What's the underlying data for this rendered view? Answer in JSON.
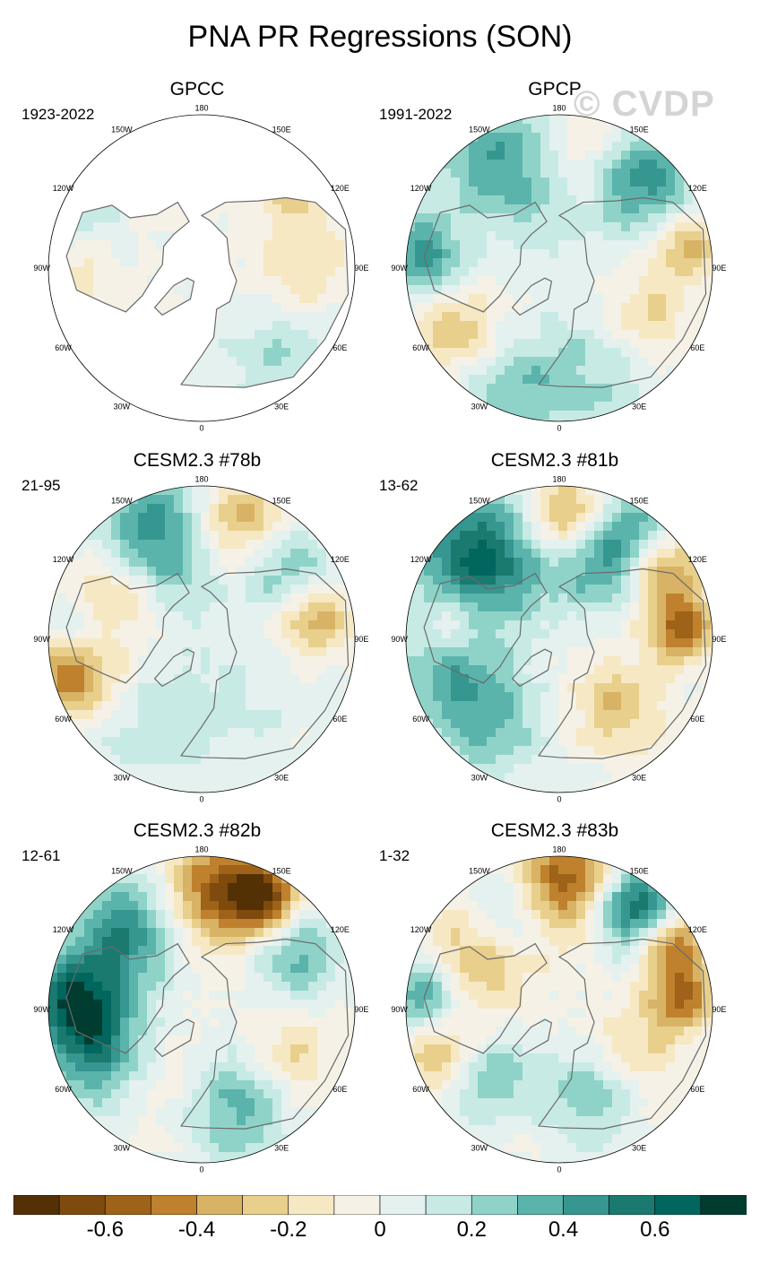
{
  "title": "PNA PR Regressions (SON)",
  "watermark": "© CVDP",
  "colors": {
    "levels": [
      "#543005",
      "#7f4a0e",
      "#9e6218",
      "#bf812d",
      "#d8b365",
      "#e8cf8c",
      "#f6e8c3",
      "#f5f1e6",
      "#e4f1ef",
      "#c7eae5",
      "#8fd3c8",
      "#5ab4ac",
      "#35978f",
      "#1a7a70",
      "#01665e",
      "#003c30"
    ],
    "land_outline": "#6a6a6a"
  },
  "lon_labels": [
    "180",
    "150E",
    "120E",
    "90E",
    "60E",
    "30E",
    "0",
    "30W",
    "60W",
    "90W",
    "120W",
    "150W"
  ],
  "panels": [
    {
      "name": "GPCC",
      "period": "1923-2022"
    },
    {
      "name": "GPCP",
      "period": "1991-2022"
    },
    {
      "name": "CESM2.3 #78b",
      "period": "21-95"
    },
    {
      "name": "CESM2.3 #81b",
      "period": "13-62"
    },
    {
      "name": "CESM2.3 #82b",
      "period": "12-61"
    },
    {
      "name": "CESM2.3 #83b",
      "period": "1-32"
    }
  ],
  "chart_data": {
    "type": "heatmap",
    "title": "PNA PR Regressions (SON)",
    "projection": "north polar stereographic",
    "colorbar": {
      "levels": [
        -0.7,
        -0.6,
        -0.5,
        -0.4,
        -0.3,
        -0.2,
        -0.1,
        0,
        0.1,
        0.2,
        0.3,
        0.4,
        0.5,
        0.6,
        0.7
      ],
      "tick_labels": [
        "-0.6",
        "-0.4",
        "-0.2",
        "0",
        "0.2",
        "0.4",
        "0.6"
      ],
      "tick_values": [
        -0.6,
        -0.4,
        -0.2,
        0,
        0.2,
        0.4,
        0.6
      ]
    },
    "panels": [
      {
        "title": "GPCC",
        "period": "1923-2022",
        "land_only": true,
        "features": [
          [
            -170,
            42,
            0.2,
            -0.25
          ],
          [
            -120,
            32,
            0.15,
            0.2
          ],
          [
            -80,
            30,
            0.2,
            -0.15
          ],
          [
            40,
            35,
            0.25,
            0.2
          ],
          [
            90,
            45,
            0.2,
            -0.2
          ],
          [
            130,
            35,
            0.15,
            -0.25
          ]
        ]
      },
      {
        "title": "GPCP",
        "period": "1991-2022",
        "land_only": false,
        "features": [
          [
            -150,
            40,
            0.35,
            0.45
          ],
          [
            165,
            38,
            0.25,
            -0.35
          ],
          [
            140,
            35,
            0.25,
            0.55
          ],
          [
            -95,
            30,
            0.2,
            0.5
          ],
          [
            -60,
            35,
            0.2,
            -0.3
          ],
          [
            100,
            32,
            0.15,
            -0.35
          ],
          [
            60,
            45,
            0.2,
            -0.25
          ],
          [
            -20,
            30,
            0.25,
            0.25
          ],
          [
            -110,
            45,
            0.25,
            -0.2
          ],
          [
            20,
            40,
            0.3,
            0.2
          ]
        ]
      },
      {
        "title": "CESM2.3 #78b",
        "period": "21-95",
        "land_only": false,
        "features": [
          [
            -160,
            40,
            0.3,
            0.5
          ],
          [
            165,
            35,
            0.22,
            -0.45
          ],
          [
            -115,
            45,
            0.2,
            -0.35
          ],
          [
            130,
            40,
            0.2,
            0.3
          ],
          [
            -75,
            30,
            0.2,
            -0.5
          ],
          [
            -95,
            35,
            0.15,
            0.3
          ],
          [
            100,
            38,
            0.15,
            -0.4
          ],
          [
            -30,
            45,
            0.3,
            0.15
          ],
          [
            30,
            55,
            0.3,
            0.1
          ]
        ]
      },
      {
        "title": "CESM2.3 #81b",
        "period": "13-62",
        "land_only": false,
        "features": [
          [
            -135,
            38,
            0.3,
            0.65
          ],
          [
            175,
            35,
            0.2,
            -0.5
          ],
          [
            145,
            35,
            0.25,
            0.55
          ],
          [
            125,
            32,
            0.18,
            -0.6
          ],
          [
            95,
            35,
            0.15,
            -0.55
          ],
          [
            -80,
            38,
            0.25,
            0.45
          ],
          [
            -95,
            40,
            0.2,
            -0.4
          ],
          [
            40,
            50,
            0.2,
            -0.3
          ],
          [
            -40,
            40,
            0.25,
            0.3
          ],
          [
            160,
            55,
            0.2,
            0.2
          ]
        ]
      },
      {
        "title": "CESM2.3 #82b",
        "period": "12-61",
        "land_only": false,
        "features": [
          [
            170,
            35,
            0.25,
            -0.6
          ],
          [
            150,
            32,
            0.15,
            -0.5
          ],
          [
            -135,
            40,
            0.25,
            0.5
          ],
          [
            -95,
            32,
            0.2,
            0.55
          ],
          [
            -70,
            38,
            0.25,
            0.5
          ],
          [
            20,
            45,
            0.25,
            0.4
          ],
          [
            60,
            45,
            0.2,
            -0.25
          ],
          [
            120,
            40,
            0.2,
            0.35
          ],
          [
            -20,
            55,
            0.25,
            -0.15
          ]
        ]
      },
      {
        "title": "CESM2.3 #83b",
        "period": "1-32",
        "land_only": false,
        "features": [
          [
            175,
            32,
            0.25,
            -0.6
          ],
          [
            145,
            32,
            0.2,
            0.7
          ],
          [
            120,
            30,
            0.15,
            -0.55
          ],
          [
            95,
            35,
            0.15,
            -0.5
          ],
          [
            -120,
            45,
            0.25,
            -0.4
          ],
          [
            -95,
            30,
            0.2,
            0.5
          ],
          [
            -70,
            35,
            0.2,
            -0.45
          ],
          [
            -50,
            45,
            0.2,
            0.4
          ],
          [
            20,
            48,
            0.2,
            0.3
          ],
          [
            60,
            50,
            0.2,
            -0.2
          ],
          [
            -150,
            42,
            0.2,
            0.3
          ]
        ]
      }
    ]
  }
}
